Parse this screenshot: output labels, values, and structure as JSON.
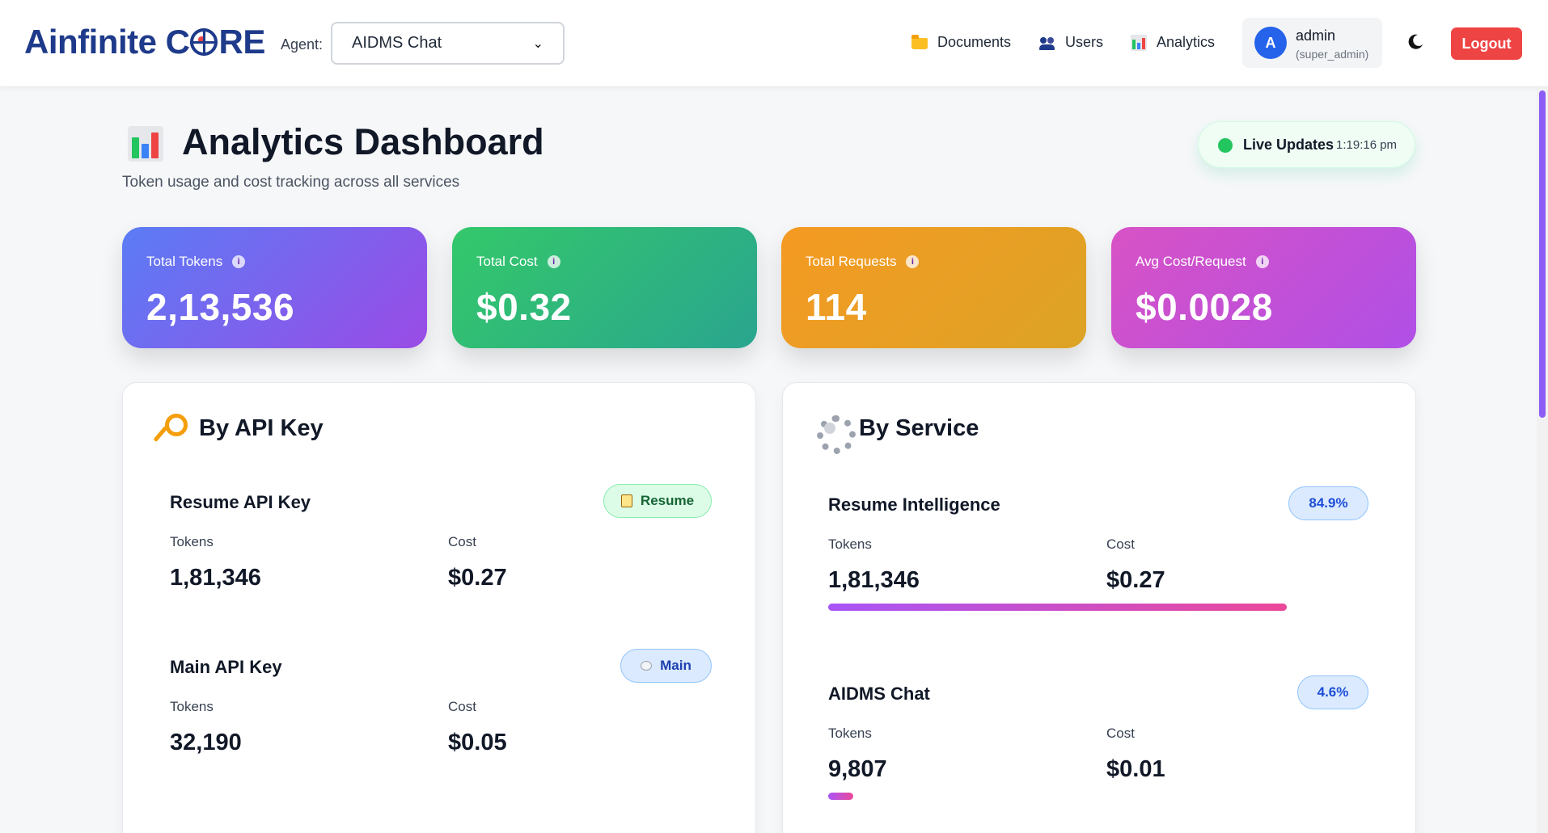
{
  "header": {
    "logo_text": "Ainfinite C",
    "logo_text_end": "RE",
    "agent_label": "Agent:",
    "agent_selected": "AIDMS Chat",
    "nav": [
      {
        "label": "Documents",
        "icon": "folder-icon"
      },
      {
        "label": "Users",
        "icon": "users-icon"
      },
      {
        "label": "Analytics",
        "icon": "chart-icon"
      }
    ],
    "user": {
      "initial": "A",
      "name": "admin",
      "role": "(super_admin)"
    },
    "theme_icon": "moon-icon",
    "logout_label": "Logout"
  },
  "page": {
    "title": "Analytics Dashboard",
    "subtitle": "Token usage and cost tracking across all services",
    "live": {
      "label": "Live Updates",
      "time": "1:19:16 pm"
    }
  },
  "stats": [
    {
      "label": "Total Tokens",
      "value": "2,13,536"
    },
    {
      "label": "Total Cost",
      "value": "$0.32"
    },
    {
      "label": "Total Requests",
      "value": "114"
    },
    {
      "label": "Avg Cost/Request",
      "value": "$0.0028"
    }
  ],
  "by_api_key": {
    "title": "By API Key",
    "items": [
      {
        "name": "Resume API Key",
        "badge": "Resume",
        "tokens_label": "Tokens",
        "tokens": "1,81,346",
        "cost_label": "Cost",
        "cost": "$0.27"
      },
      {
        "name": "Main API Key",
        "badge": "Main",
        "tokens_label": "Tokens",
        "tokens": "32,190",
        "cost_label": "Cost",
        "cost": "$0.05"
      }
    ]
  },
  "by_service": {
    "title": "By Service",
    "items": [
      {
        "name": "Resume Intelligence",
        "percent": "84.9%",
        "share": 0.849,
        "tokens_label": "Tokens",
        "tokens": "1,81,346",
        "cost_label": "Cost",
        "cost": "$0.27"
      },
      {
        "name": "AIDMS Chat",
        "percent": "4.6%",
        "share": 0.046,
        "tokens_label": "Tokens",
        "tokens": "9,807",
        "cost_label": "Cost",
        "cost": "$0.01"
      }
    ]
  },
  "colors": {
    "accent": "#1e3a8a",
    "logout": "#ef4444",
    "live_dot": "#22c55e"
  }
}
